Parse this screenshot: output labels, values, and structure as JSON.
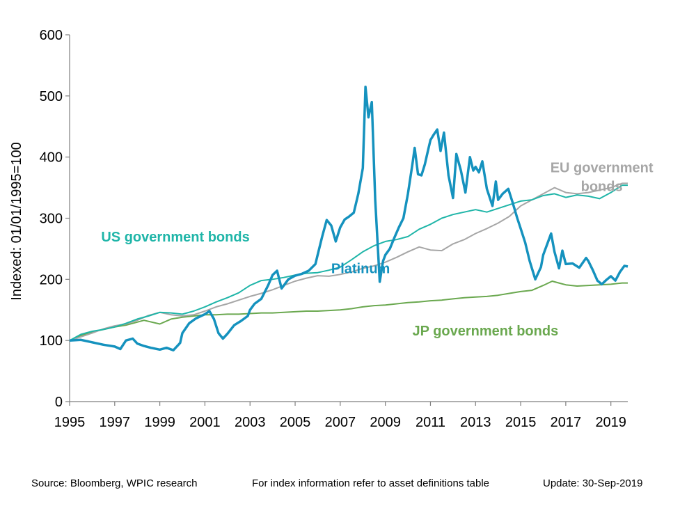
{
  "footer": {
    "source": "Source: Bloomberg, WPIC research",
    "note": "For index information refer to asset definitions table",
    "update": "Update: 30-Sep-2019"
  },
  "chart_data": {
    "type": "line",
    "ylabel": "Indexed: 01/01/1995=100",
    "xlabel": "",
    "ylim": [
      0,
      600
    ],
    "xlim": [
      1995,
      2019.75
    ],
    "yticks": [
      0,
      100,
      200,
      300,
      400,
      500,
      600
    ],
    "xticks": [
      1995,
      1997,
      1999,
      2001,
      2003,
      2005,
      2007,
      2009,
      2011,
      2013,
      2015,
      2017,
      2019
    ],
    "grid": false,
    "colors": {
      "platinum": "#1592be",
      "us": "#1fb5a8",
      "eu": "#a6a6a6",
      "jp": "#6aa84f"
    },
    "series": [
      {
        "name": "Platinum",
        "color": "#1592be",
        "label_pos": [
          2006.6,
          210
        ],
        "points": [
          [
            1995,
            100
          ],
          [
            1995.5,
            101
          ],
          [
            1996,
            97
          ],
          [
            1996.5,
            93
          ],
          [
            1997,
            90
          ],
          [
            1997.25,
            86
          ],
          [
            1997.5,
            100
          ],
          [
            1997.8,
            103
          ],
          [
            1998,
            95
          ],
          [
            1998.3,
            91
          ],
          [
            1998.6,
            88
          ],
          [
            1999,
            85
          ],
          [
            1999.3,
            88
          ],
          [
            1999.6,
            84
          ],
          [
            1999.9,
            96
          ],
          [
            2000,
            112
          ],
          [
            2000.3,
            128
          ],
          [
            2000.6,
            136
          ],
          [
            2001,
            143
          ],
          [
            2001.2,
            148
          ],
          [
            2001.4,
            135
          ],
          [
            2001.6,
            112
          ],
          [
            2001.8,
            103
          ],
          [
            2002,
            111
          ],
          [
            2002.3,
            125
          ],
          [
            2002.6,
            132
          ],
          [
            2002.9,
            140
          ],
          [
            2003,
            150
          ],
          [
            2003.2,
            160
          ],
          [
            2003.5,
            168
          ],
          [
            2003.8,
            190
          ],
          [
            2004,
            207
          ],
          [
            2004.2,
            214
          ],
          [
            2004.4,
            185
          ],
          [
            2004.7,
            200
          ],
          [
            2005,
            206
          ],
          [
            2005.3,
            209
          ],
          [
            2005.6,
            214
          ],
          [
            2005.9,
            225
          ],
          [
            2006,
            240
          ],
          [
            2006.2,
            270
          ],
          [
            2006.4,
            297
          ],
          [
            2006.6,
            288
          ],
          [
            2006.8,
            262
          ],
          [
            2007,
            285
          ],
          [
            2007.2,
            298
          ],
          [
            2007.4,
            303
          ],
          [
            2007.6,
            309
          ],
          [
            2007.8,
            340
          ],
          [
            2008,
            382
          ],
          [
            2008.12,
            515
          ],
          [
            2008.25,
            465
          ],
          [
            2008.4,
            490
          ],
          [
            2008.55,
            330
          ],
          [
            2008.75,
            196
          ],
          [
            2008.9,
            230
          ],
          [
            2009,
            240
          ],
          [
            2009.2,
            250
          ],
          [
            2009.4,
            268
          ],
          [
            2009.6,
            285
          ],
          [
            2009.8,
            300
          ],
          [
            2010,
            340
          ],
          [
            2010.2,
            388
          ],
          [
            2010.3,
            415
          ],
          [
            2010.45,
            372
          ],
          [
            2010.6,
            370
          ],
          [
            2010.75,
            388
          ],
          [
            2010.9,
            412
          ],
          [
            2011,
            428
          ],
          [
            2011.15,
            437
          ],
          [
            2011.3,
            445
          ],
          [
            2011.45,
            410
          ],
          [
            2011.6,
            440
          ],
          [
            2011.8,
            370
          ],
          [
            2012,
            333
          ],
          [
            2012.15,
            405
          ],
          [
            2012.35,
            378
          ],
          [
            2012.55,
            342
          ],
          [
            2012.75,
            400
          ],
          [
            2012.9,
            378
          ],
          [
            2013,
            384
          ],
          [
            2013.15,
            375
          ],
          [
            2013.3,
            393
          ],
          [
            2013.5,
            348
          ],
          [
            2013.75,
            320
          ],
          [
            2013.9,
            360
          ],
          [
            2014,
            330
          ],
          [
            2014.2,
            340
          ],
          [
            2014.45,
            348
          ],
          [
            2014.65,
            325
          ],
          [
            2014.85,
            300
          ],
          [
            2015,
            283
          ],
          [
            2015.2,
            260
          ],
          [
            2015.4,
            230
          ],
          [
            2015.65,
            200
          ],
          [
            2015.9,
            220
          ],
          [
            2016,
            240
          ],
          [
            2016.2,
            260
          ],
          [
            2016.35,
            275
          ],
          [
            2016.5,
            245
          ],
          [
            2016.7,
            218
          ],
          [
            2016.85,
            247
          ],
          [
            2017,
            225
          ],
          [
            2017.3,
            226
          ],
          [
            2017.6,
            219
          ],
          [
            2017.9,
            235
          ],
          [
            2018,
            230
          ],
          [
            2018.2,
            215
          ],
          [
            2018.4,
            198
          ],
          [
            2018.6,
            192
          ],
          [
            2018.8,
            199
          ],
          [
            2019,
            205
          ],
          [
            2019.2,
            198
          ],
          [
            2019.4,
            212
          ],
          [
            2019.6,
            222
          ],
          [
            2019.75,
            221
          ]
        ]
      },
      {
        "name": "US government bonds",
        "color": "#1fb5a8",
        "label_pos": [
          1996.4,
          262
        ],
        "points": [
          [
            1995,
            100
          ],
          [
            1995.5,
            110
          ],
          [
            1996,
            115
          ],
          [
            1996.5,
            118
          ],
          [
            1997,
            122
          ],
          [
            1997.5,
            128
          ],
          [
            1998,
            135
          ],
          [
            1998.5,
            140
          ],
          [
            1999,
            146
          ],
          [
            1999.5,
            145
          ],
          [
            2000,
            143
          ],
          [
            2000.5,
            148
          ],
          [
            2001,
            155
          ],
          [
            2001.5,
            163
          ],
          [
            2002,
            170
          ],
          [
            2002.5,
            178
          ],
          [
            2003,
            190
          ],
          [
            2003.5,
            198
          ],
          [
            2004,
            200
          ],
          [
            2004.5,
            203
          ],
          [
            2005,
            207
          ],
          [
            2005.5,
            210
          ],
          [
            2006,
            211
          ],
          [
            2006.5,
            215
          ],
          [
            2007,
            220
          ],
          [
            2007.5,
            232
          ],
          [
            2008,
            245
          ],
          [
            2008.5,
            255
          ],
          [
            2009,
            262
          ],
          [
            2009.5,
            265
          ],
          [
            2010,
            270
          ],
          [
            2010.5,
            282
          ],
          [
            2011,
            290
          ],
          [
            2011.5,
            300
          ],
          [
            2012,
            306
          ],
          [
            2012.5,
            310
          ],
          [
            2013,
            314
          ],
          [
            2013.5,
            310
          ],
          [
            2014,
            316
          ],
          [
            2014.5,
            322
          ],
          [
            2015,
            328
          ],
          [
            2015.5,
            330
          ],
          [
            2016,
            337
          ],
          [
            2016.5,
            340
          ],
          [
            2017,
            334
          ],
          [
            2017.5,
            338
          ],
          [
            2018,
            336
          ],
          [
            2018.5,
            332
          ],
          [
            2019,
            342
          ],
          [
            2019.5,
            354
          ],
          [
            2019.75,
            354
          ]
        ]
      },
      {
        "name": "EU government bonds",
        "color": "#a6a6a6",
        "label_pos": [
          2017.3,
          375
        ],
        "points": [
          [
            1995,
            100
          ],
          [
            1995.5,
            106
          ],
          [
            1996,
            112
          ],
          [
            1996.5,
            119
          ],
          [
            1997,
            124
          ],
          [
            1997.5,
            127
          ],
          [
            1998,
            133
          ],
          [
            1998.5,
            141
          ],
          [
            1999,
            146
          ],
          [
            1999.5,
            142
          ],
          [
            2000,
            140
          ],
          [
            2000.5,
            142
          ],
          [
            2001,
            148
          ],
          [
            2001.5,
            155
          ],
          [
            2002,
            160
          ],
          [
            2002.5,
            166
          ],
          [
            2003,
            172
          ],
          [
            2003.5,
            177
          ],
          [
            2004,
            183
          ],
          [
            2004.5,
            190
          ],
          [
            2005,
            197
          ],
          [
            2005.5,
            202
          ],
          [
            2006,
            206
          ],
          [
            2006.5,
            205
          ],
          [
            2007,
            208
          ],
          [
            2007.5,
            212
          ],
          [
            2008,
            218
          ],
          [
            2008.5,
            222
          ],
          [
            2009,
            228
          ],
          [
            2009.5,
            236
          ],
          [
            2010,
            245
          ],
          [
            2010.5,
            253
          ],
          [
            2011,
            248
          ],
          [
            2011.5,
            247
          ],
          [
            2012,
            258
          ],
          [
            2012.5,
            265
          ],
          [
            2013,
            275
          ],
          [
            2013.5,
            283
          ],
          [
            2014,
            292
          ],
          [
            2014.5,
            303
          ],
          [
            2015,
            320
          ],
          [
            2015.5,
            330
          ],
          [
            2016,
            340
          ],
          [
            2016.5,
            350
          ],
          [
            2017,
            342
          ],
          [
            2017.5,
            340
          ],
          [
            2018,
            342
          ],
          [
            2018.5,
            346
          ],
          [
            2019,
            350
          ],
          [
            2019.5,
            357
          ],
          [
            2019.75,
            357
          ]
        ]
      },
      {
        "name": "JP government bonds",
        "color": "#6aa84f",
        "label_pos": [
          2010.2,
          108
        ],
        "points": [
          [
            1995,
            100
          ],
          [
            1995.5,
            108
          ],
          [
            1996,
            114
          ],
          [
            1996.5,
            118
          ],
          [
            1997,
            122
          ],
          [
            1997.5,
            125
          ],
          [
            1998,
            130
          ],
          [
            1998.3,
            133
          ],
          [
            1999,
            127
          ],
          [
            1999.5,
            135
          ],
          [
            2000,
            138
          ],
          [
            2000.5,
            140
          ],
          [
            2001,
            142
          ],
          [
            2001.5,
            142
          ],
          [
            2002,
            143
          ],
          [
            2002.5,
            143
          ],
          [
            2003,
            144
          ],
          [
            2003.5,
            145
          ],
          [
            2004,
            145
          ],
          [
            2004.5,
            146
          ],
          [
            2005,
            147
          ],
          [
            2005.5,
            148
          ],
          [
            2006,
            148
          ],
          [
            2006.5,
            149
          ],
          [
            2007,
            150
          ],
          [
            2007.5,
            152
          ],
          [
            2008,
            155
          ],
          [
            2008.5,
            157
          ],
          [
            2009,
            158
          ],
          [
            2009.5,
            160
          ],
          [
            2010,
            162
          ],
          [
            2010.5,
            163
          ],
          [
            2011,
            165
          ],
          [
            2011.5,
            166
          ],
          [
            2012,
            168
          ],
          [
            2012.5,
            170
          ],
          [
            2013,
            171
          ],
          [
            2013.5,
            172
          ],
          [
            2014,
            174
          ],
          [
            2014.5,
            177
          ],
          [
            2015,
            180
          ],
          [
            2015.5,
            182
          ],
          [
            2016,
            190
          ],
          [
            2016.4,
            197
          ],
          [
            2016.8,
            193
          ],
          [
            2017,
            191
          ],
          [
            2017.5,
            189
          ],
          [
            2018,
            190
          ],
          [
            2018.5,
            191
          ],
          [
            2019,
            192
          ],
          [
            2019.5,
            194
          ],
          [
            2019.75,
            194
          ]
        ]
      }
    ]
  }
}
